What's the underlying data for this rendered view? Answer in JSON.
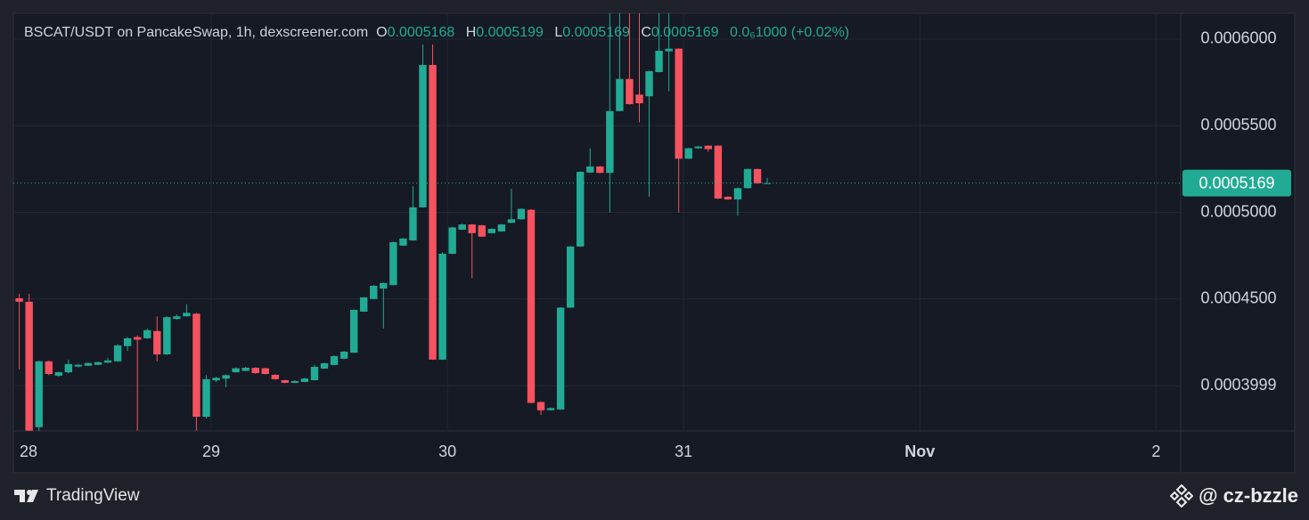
{
  "chart_data": {
    "type": "candlestick",
    "title": "BSCAT/USDT on PancakeSwap, 1h, dexscreener.com",
    "ohlc_labels": [
      "O",
      "H",
      "L",
      "C"
    ],
    "change": "0.0₆1000 (+0.02%)",
    "up_color": "#22ab94",
    "down_color": "#f7525f",
    "x": [
      4,
      5,
      6,
      7,
      8,
      9,
      10,
      11,
      12,
      13,
      14,
      15,
      16,
      17,
      18,
      19,
      20,
      21,
      22,
      23,
      24,
      25,
      26,
      27,
      28,
      29,
      30,
      31,
      32,
      33,
      34,
      35,
      36,
      37,
      38,
      39,
      40,
      41,
      42,
      43,
      44,
      45,
      46,
      47,
      48,
      49,
      50,
      51,
      52,
      53,
      54,
      55,
      56,
      57,
      58,
      59,
      60,
      61,
      62,
      63,
      64,
      65,
      66,
      67,
      68,
      69,
      70,
      71,
      72,
      73,
      74,
      75,
      76,
      77,
      78,
      79,
      80
    ],
    "series": [
      {
        "name": "BSCAT/USDT",
        "open": [
          0.0004504,
          0.0004484,
          0.000376,
          0.000414,
          0.0004057,
          0.0004077,
          0.000411,
          0.0004115,
          0.000412,
          0.0004133,
          0.000414,
          0.0004228,
          0.000428,
          0.0004273,
          0.0004315,
          0.000418,
          0.0004385,
          0.00044,
          0.0004415,
          0.000382,
          0.000403,
          0.000404,
          0.0004077,
          0.0004085,
          0.0004103,
          0.00041,
          0.0004062,
          0.0004031,
          0.0004016,
          0.0004021,
          0.0004031,
          0.0004098,
          0.0004119,
          0.0004155,
          0.000419,
          0.0004427,
          0.00045,
          0.000456,
          0.000458,
          0.0004808,
          0.0004838,
          0.0005029,
          0.0005851,
          0.000415,
          0.0004761,
          0.00049,
          0.000493,
          0.0004925,
          0.000488,
          0.000489,
          0.000494,
          0.000496,
          0.0005015,
          0.0003905,
          0.0003858,
          0.0003862,
          0.000445,
          0.0004803,
          0.000523,
          0.0005265,
          0.0005228,
          0.0005585,
          0.000577,
          0.000568,
          0.000567,
          0.000581,
          0.000593,
          0.0005945,
          0.000531,
          0.000537,
          0.0005385,
          0.0005385,
          0.000509,
          0.0005075,
          0.000514,
          0.000525,
          0.0005168
        ],
        "high": [
          0.000453,
          0.000453,
          0.0004145,
          0.0004145,
          0.000408,
          0.000415,
          0.0004125,
          0.0004133,
          0.0004138,
          0.000416,
          0.000424,
          0.000428,
          0.000429,
          0.000433,
          0.00044,
          0.00044,
          0.000441,
          0.000447,
          0.000442,
          0.000406,
          0.000405,
          0.0004065,
          0.0004105,
          0.0004108,
          0.0004106,
          0.0004103,
          0.0004065,
          0.0004034,
          0.000403,
          0.0004045,
          0.000412,
          0.0004133,
          0.0004175,
          0.00042,
          0.000444,
          0.0004512,
          0.000458,
          0.0004595,
          0.0004832,
          0.0004852,
          0.000515,
          0.000597,
          0.000597,
          0.000477,
          0.0004917,
          0.0004935,
          0.0004933,
          0.0004928,
          0.0004908,
          0.0004933,
          0.0005136,
          0.0005024,
          0.0005018,
          0.0003908,
          0.0003874,
          0.0004453,
          0.0004806,
          0.0005237,
          0.000537,
          0.0005268,
          0.000615,
          0.000615,
          0.000615,
          0.000615,
          0.0005818,
          0.000615,
          0.000615,
          0.0005948,
          0.0005373,
          0.0005383,
          0.0005388,
          0.0005388,
          0.0005093,
          0.0005143,
          0.0005253,
          0.0005253,
          0.0005199
        ],
        "low": [
          0.0004093,
          0.00037,
          0.00037,
          0.000406,
          0.000405,
          0.000407,
          0.0004105,
          0.0004112,
          0.0004118,
          0.000413,
          0.0004138,
          0.00042,
          0.000374,
          0.000427,
          0.000414,
          0.0004178,
          0.000438,
          0.0004398,
          0.000374,
          0.000381,
          0.000402,
          0.000399,
          0.0004075,
          0.0004083,
          0.0004068,
          0.0004064,
          0.0004034,
          0.0004013,
          0.0004014,
          0.0004019,
          0.0004029,
          0.0004096,
          0.0004117,
          0.0004153,
          0.0004188,
          0.0004425,
          0.0004498,
          0.000433,
          0.0004578,
          0.0004806,
          0.0004836,
          0.0005027,
          0.0004148,
          0.0004148,
          0.0004759,
          0.0004898,
          0.000462,
          0.0004857,
          0.0004878,
          0.0004888,
          0.0004938,
          0.0004958,
          0.0003897,
          0.000383,
          0.0003856,
          0.000386,
          0.0004448,
          0.0004801,
          0.0005228,
          0.0005225,
          0.0005,
          0.0005583,
          0.0005622,
          0.000552,
          0.000509,
          0.0005808,
          0.00057,
          0.0005,
          0.0005308,
          0.0005368,
          0.000535,
          0.0005077,
          0.0005072,
          0.000498,
          0.0005138,
          0.0005165,
          0.0005169
        ],
        "close": [
          0.0004484,
          0.000374,
          0.000414,
          0.0004067,
          0.0004077,
          0.0004124,
          0.000412,
          0.000413,
          0.0004135,
          0.0004145,
          0.0004232,
          0.0004273,
          0.0004265,
          0.000432,
          0.000418,
          0.0004395,
          0.00044,
          0.000442,
          0.000382,
          0.0004037,
          0.0004045,
          0.000406,
          0.00041,
          0.0004103,
          0.0004072,
          0.0004067,
          0.0004037,
          0.0004016,
          0.0004026,
          0.0004041,
          0.0004108,
          0.0004129,
          0.000417,
          0.0004196,
          0.0004437,
          0.0004509,
          0.0004576,
          0.0004592,
          0.0004828,
          0.0004849,
          0.0005029,
          0.0005851,
          0.000415,
          0.0004761,
          0.0004913,
          0.000493,
          0.000488,
          0.000486,
          0.0004905,
          0.000493,
          0.000496,
          0.000502,
          0.00039,
          0.0003857,
          0.000387,
          0.000445,
          0.0004803,
          0.0005234,
          0.0005265,
          0.0005228,
          0.0005585,
          0.000577,
          0.0005625,
          0.000563,
          0.0005815,
          0.0005933,
          0.0005945,
          0.000531,
          0.000537,
          0.000538,
          0.0005365,
          0.000508,
          0.0005075,
          0.000514,
          0.000525,
          0.0005168,
          0.0005169
        ]
      }
    ],
    "xlim": [
      3.9,
      122.5
    ],
    "xticks": [
      {
        "value": 0,
        "label": "28"
      },
      {
        "value": 24,
        "label": "29"
      },
      {
        "value": 48,
        "label": "30"
      },
      {
        "value": 72,
        "label": "31"
      },
      {
        "value": 96,
        "label": "Nov"
      },
      {
        "value": 120,
        "label": "2"
      }
    ],
    "ylim": [
      0.0003738,
      0.0006149
    ],
    "yticks": [
      {
        "value": 0.0006,
        "label": "0.0006000"
      },
      {
        "value": 0.00055,
        "label": "0.0005500"
      },
      {
        "value": 0.0005,
        "label": "0.0005000"
      },
      {
        "value": 0.00045,
        "label": "0.0004500"
      },
      0.0003999
    ],
    "grid": true
  },
  "footer": {
    "brand": "TradingView",
    "credit": "@ cz-bzzle"
  }
}
